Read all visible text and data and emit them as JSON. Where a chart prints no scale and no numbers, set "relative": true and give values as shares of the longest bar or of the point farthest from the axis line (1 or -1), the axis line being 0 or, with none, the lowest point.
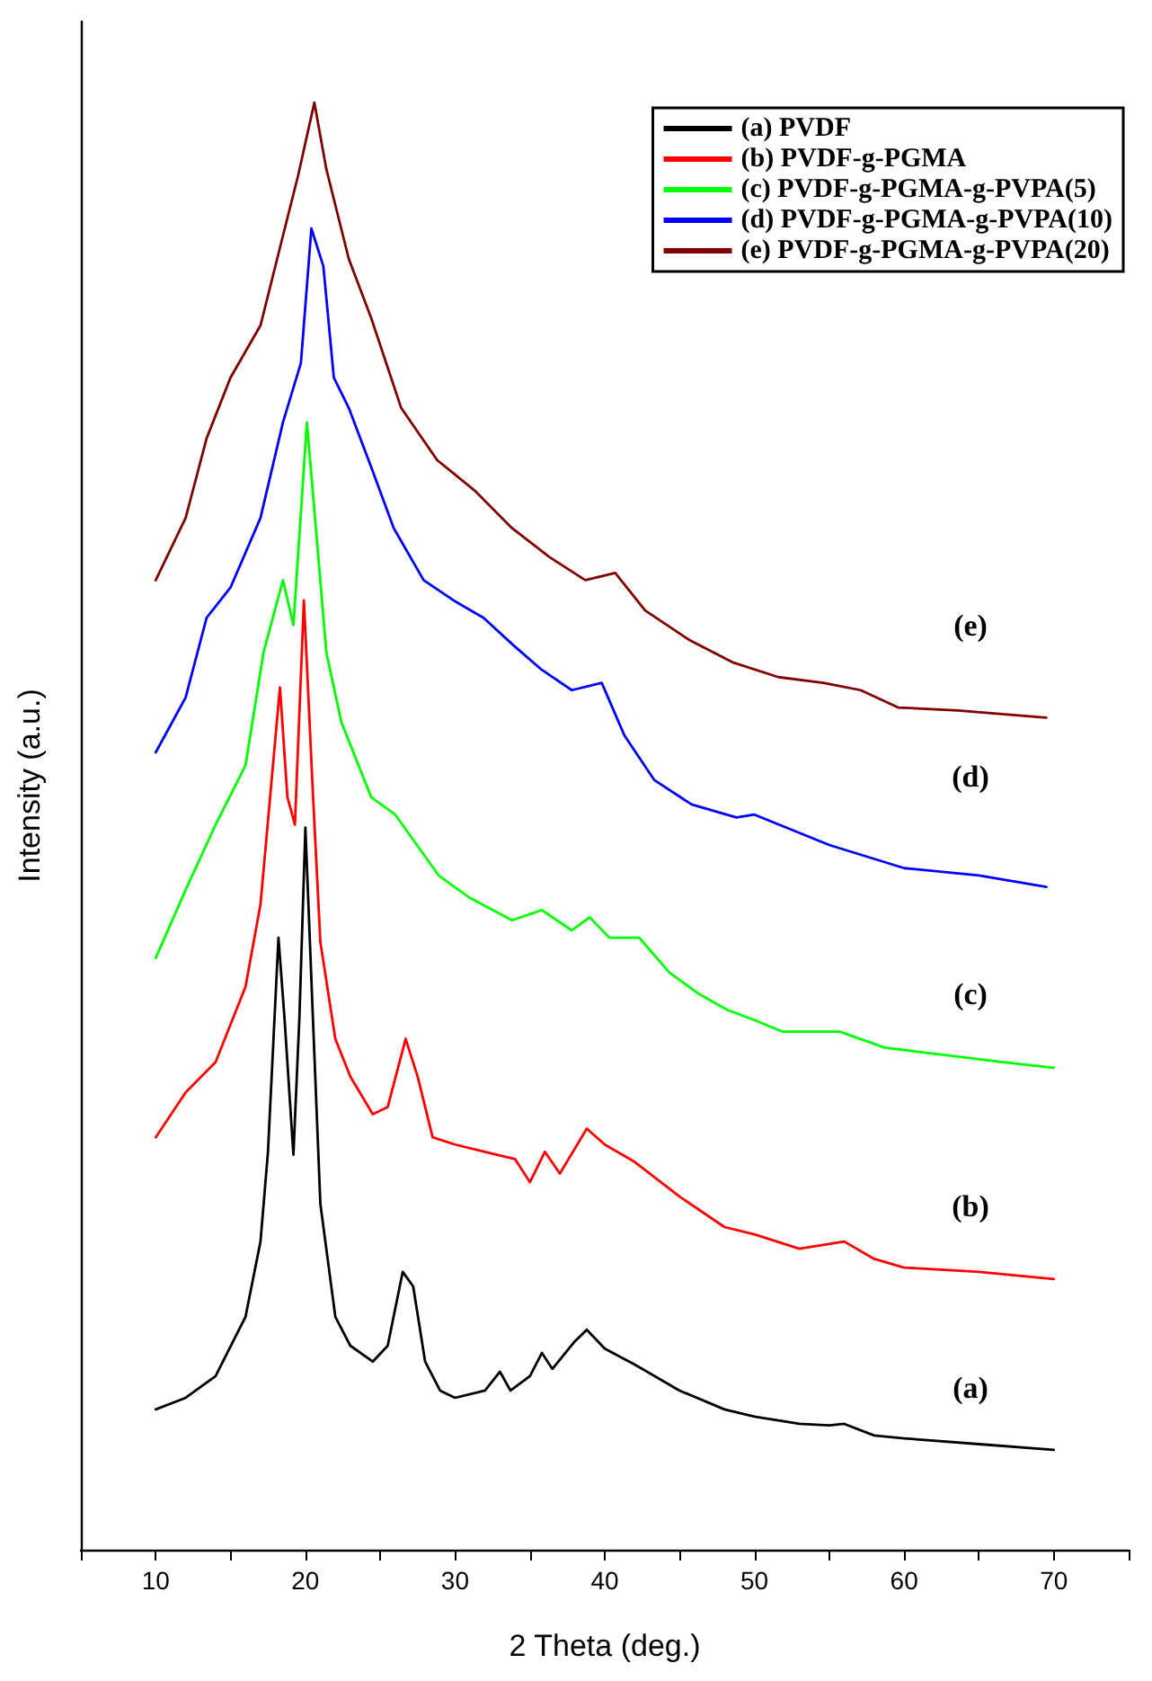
{
  "chart_data": {
    "type": "line",
    "relative": true,
    "xlabel": "2 Theta (deg.)",
    "ylabel": "Intensity (a.u.)",
    "xlim": [
      5,
      75
    ],
    "xticks": [
      {
        "value": 5,
        "label": null
      },
      10,
      {
        "value": 15,
        "label": null
      },
      20,
      {
        "value": 25,
        "label": null
      },
      30,
      {
        "value": 35,
        "label": null
      },
      40,
      {
        "value": 45,
        "label": null
      },
      50,
      {
        "value": 55,
        "label": null
      },
      60,
      {
        "value": 65,
        "label": null
      },
      70,
      {
        "value": 75,
        "label": null
      }
    ],
    "grid": false,
    "legend": "top right",
    "marker": "none",
    "line_style": "solid",
    "series": [
      {
        "name": "(a) PVDF",
        "color": "#000000",
        "x": [
          10,
          12,
          14,
          16,
          17,
          17.5,
          18.2,
          18.6,
          19.2,
          19.6,
          20,
          20.5,
          21,
          22,
          23,
          24.5,
          25.5,
          26.5,
          27.2,
          28,
          29,
          30,
          32,
          33,
          33.7,
          35,
          35.8,
          36.5,
          38,
          38.8,
          40,
          42,
          45,
          48,
          50,
          53,
          55,
          56,
          58,
          60,
          65,
          70
        ],
        "values": [
          0.097,
          0.105,
          0.12,
          0.161,
          0.213,
          0.275,
          0.423,
          0.368,
          0.273,
          0.368,
          0.499,
          0.368,
          0.239,
          0.161,
          0.141,
          0.13,
          0.141,
          0.192,
          0.182,
          0.13,
          0.11,
          0.105,
          0.11,
          0.123,
          0.11,
          0.12,
          0.136,
          0.125,
          0.144,
          0.152,
          0.139,
          0.128,
          0.11,
          0.097,
          0.092,
          0.087,
          0.086,
          0.087,
          0.079,
          0.077,
          0.073,
          0.069
        ]
      },
      {
        "name": "(b) PVDF-g-PGMA",
        "color": "#ff0000",
        "x": [
          10,
          12,
          14,
          16,
          17,
          18.3,
          18.8,
          19.3,
          19.9,
          20.5,
          21,
          22,
          23,
          24.5,
          25.5,
          26.7,
          27.5,
          28.5,
          30,
          32,
          34,
          35,
          36,
          37,
          38.8,
          40,
          42,
          45,
          48,
          50,
          53,
          56,
          58,
          60,
          65,
          70
        ],
        "values": [
          0.285,
          0.316,
          0.337,
          0.389,
          0.446,
          0.596,
          0.52,
          0.501,
          0.656,
          0.523,
          0.42,
          0.353,
          0.327,
          0.301,
          0.306,
          0.353,
          0.327,
          0.285,
          0.28,
          0.275,
          0.27,
          0.254,
          0.275,
          0.26,
          0.291,
          0.28,
          0.268,
          0.244,
          0.223,
          0.218,
          0.208,
          0.213,
          0.201,
          0.195,
          0.192,
          0.187
        ]
      },
      {
        "name": "(c) PVDF-g-PGMA-g-PVPA(5)",
        "color": "#00ff00",
        "x": [
          10,
          12,
          14,
          16,
          17.2,
          18.5,
          19.2,
          20.1,
          20.7,
          21.4,
          22.4,
          24.4,
          26,
          28.9,
          30.9,
          33.8,
          35.8,
          37.8,
          39,
          40.3,
          42.3,
          44.3,
          46.3,
          48.2,
          50,
          51.9,
          55.7,
          58.7,
          62.6,
          66.5,
          70
        ],
        "values": [
          0.409,
          0.456,
          0.501,
          0.542,
          0.62,
          0.67,
          0.639,
          0.779,
          0.706,
          0.62,
          0.572,
          0.52,
          0.508,
          0.466,
          0.451,
          0.435,
          0.442,
          0.428,
          0.437,
          0.423,
          0.423,
          0.399,
          0.384,
          0.373,
          0.366,
          0.358,
          0.358,
          0.347,
          0.342,
          0.337,
          0.333
        ]
      },
      {
        "name": "(d) PVDF-g-PGMA-g-PVPA(10)",
        "color": "#0000ff",
        "x": [
          10,
          12,
          13.4,
          15,
          17,
          18.5,
          19.7,
          20.4,
          21.2,
          21.9,
          22.9,
          24.4,
          25.9,
          27.9,
          29.9,
          31.9,
          33.9,
          35.8,
          37.8,
          39.8,
          41.3,
          43.3,
          45.8,
          48.8,
          50,
          55,
          60,
          65,
          69.5
        ],
        "values": [
          0.551,
          0.589,
          0.644,
          0.665,
          0.713,
          0.779,
          0.82,
          0.913,
          0.887,
          0.81,
          0.789,
          0.748,
          0.706,
          0.67,
          0.656,
          0.644,
          0.625,
          0.608,
          0.594,
          0.599,
          0.563,
          0.532,
          0.515,
          0.506,
          0.508,
          0.487,
          0.471,
          0.466,
          0.458
        ]
      },
      {
        "name": "(e) PVDF-g-PGMA-g-PVPA(20)",
        "color": "#800000",
        "x": [
          10,
          12,
          13.4,
          15,
          17,
          18.5,
          19.5,
          20.6,
          21.4,
          22.9,
          24.4,
          26.4,
          28.8,
          31.3,
          33.8,
          36.3,
          38.7,
          40.7,
          42.7,
          45.6,
          48.6,
          51.6,
          54.6,
          57.1,
          59.6,
          63.6,
          69.5
        ],
        "values": [
          0.67,
          0.713,
          0.768,
          0.81,
          0.846,
          0.908,
          0.949,
          1,
          0.954,
          0.892,
          0.851,
          0.789,
          0.753,
          0.732,
          0.706,
          0.686,
          0.67,
          0.675,
          0.649,
          0.629,
          0.613,
          0.603,
          0.599,
          0.594,
          0.582,
          0.58,
          0.575
        ]
      }
    ],
    "annotations": [
      "(e)",
      "(d)",
      "(c)",
      "(b)",
      "(a)"
    ]
  }
}
